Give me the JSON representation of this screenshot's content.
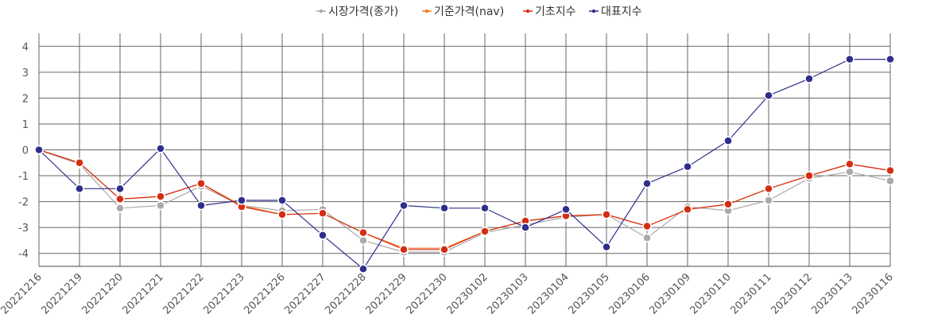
{
  "chart_data": {
    "type": "line",
    "title": "",
    "xlabel": "",
    "ylabel": "",
    "ylim": [
      -4.5,
      4.5
    ],
    "yticks": [
      -4,
      -3,
      -2,
      -1,
      0,
      1,
      2,
      3,
      4
    ],
    "grid": true,
    "legend_position": "top-center",
    "categories": [
      "20221216",
      "20221219",
      "20221220",
      "20221221",
      "20221222",
      "20221223",
      "20221226",
      "20221227",
      "20221228",
      "20221229",
      "20221230",
      "20230102",
      "20230103",
      "20230104",
      "20230105",
      "20230106",
      "20230109",
      "20230110",
      "20230111",
      "20230112",
      "20230113",
      "20230116"
    ],
    "series": [
      {
        "name": "시장가격(종가)",
        "color": "#aaaaaa",
        "values": [
          0,
          -0.55,
          -2.25,
          -2.15,
          -1.4,
          -2.15,
          -2.35,
          -2.3,
          -3.5,
          -3.95,
          -3.95,
          -3.2,
          -2.9,
          -2.6,
          -2.5,
          -3.4,
          -2.2,
          -2.35,
          -1.95,
          -1.1,
          -0.85,
          -1.2
        ]
      },
      {
        "name": "기준가격(nav)",
        "color": "#f47920",
        "values": [
          0,
          -0.5,
          -1.9,
          -1.8,
          -1.3,
          -2.15,
          -2.5,
          -2.45,
          -3.2,
          -3.8,
          -3.8,
          -3.15,
          -2.75,
          -2.55,
          -2.5,
          -2.95,
          -2.3,
          -2.1,
          -1.5,
          -1.0,
          -0.55,
          -0.8
        ]
      },
      {
        "name": "기초지수",
        "color": "#d42e12",
        "values": [
          0,
          -0.5,
          -1.9,
          -1.8,
          -1.3,
          -2.2,
          -2.5,
          -2.45,
          -3.2,
          -3.85,
          -3.85,
          -3.15,
          -2.75,
          -2.55,
          -2.5,
          -2.95,
          -2.3,
          -2.1,
          -1.5,
          -1.0,
          -0.55,
          -0.8
        ]
      },
      {
        "name": "대표지수",
        "color": "#2e2e8c",
        "values": [
          0,
          -1.5,
          -1.5,
          0.05,
          -2.15,
          -1.95,
          -1.95,
          -3.3,
          -4.6,
          -2.15,
          -2.25,
          -2.25,
          -3.0,
          -2.3,
          -3.75,
          -1.3,
          -0.65,
          0.35,
          2.1,
          2.75,
          3.5,
          3.5
        ]
      }
    ]
  }
}
